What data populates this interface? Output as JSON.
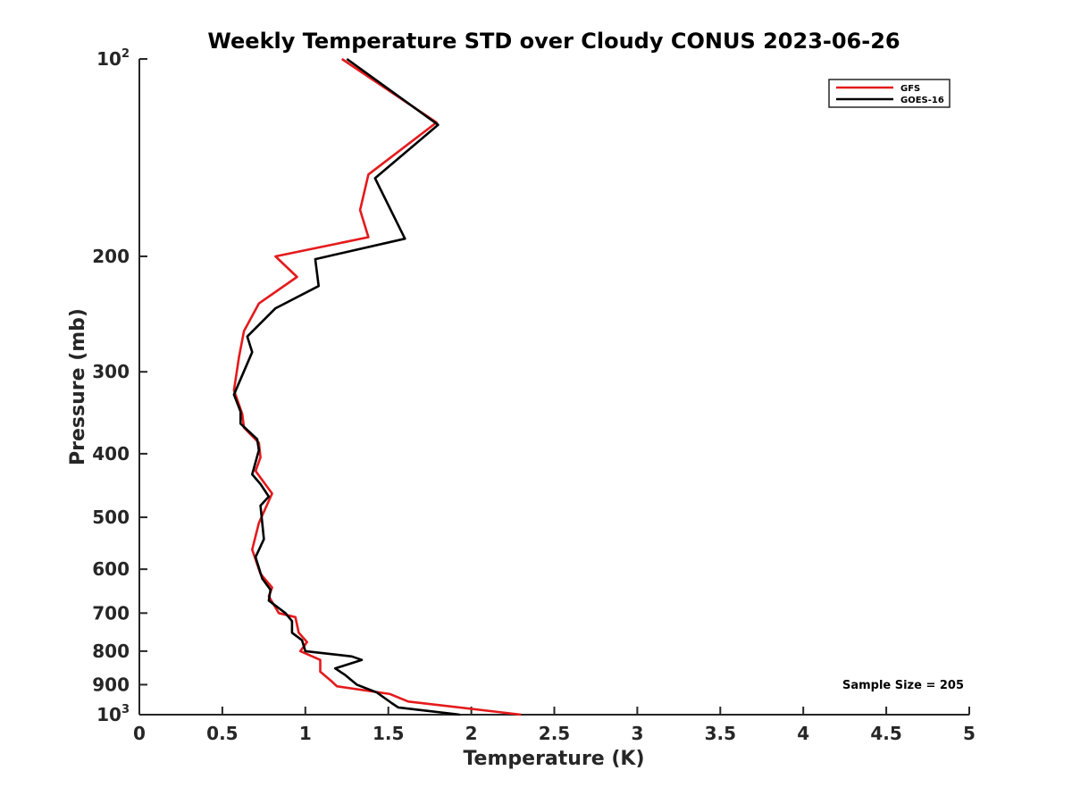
{
  "chart_data": {
    "type": "line",
    "title": "Weekly Temperature STD over Cloudy CONUS 2023-06-26",
    "xlabel": "Temperature (K)",
    "ylabel": "Pressure (mb)",
    "xlim": [
      0,
      5
    ],
    "ylim": [
      100,
      1000
    ],
    "yscale": "log",
    "y_reversed": true,
    "grid": false,
    "legend_position": "top-right",
    "x_ticks": [
      0,
      0.5,
      1,
      1.5,
      2,
      2.5,
      3,
      3.5,
      4,
      4.5,
      5
    ],
    "x_tick_labels": [
      "0",
      "0.5",
      "1",
      "1.5",
      "2",
      "2.5",
      "3",
      "3.5",
      "4",
      "4.5",
      "5"
    ],
    "y_ticks": [
      100,
      200,
      300,
      400,
      500,
      600,
      700,
      800,
      900,
      1000
    ],
    "y_tick_labels": [
      {
        "base": "10",
        "exp": "2"
      },
      {
        "base": "200",
        "exp": ""
      },
      {
        "base": "300",
        "exp": ""
      },
      {
        "base": "400",
        "exp": ""
      },
      {
        "base": "500",
        "exp": ""
      },
      {
        "base": "600",
        "exp": ""
      },
      {
        "base": "700",
        "exp": ""
      },
      {
        "base": "800",
        "exp": ""
      },
      {
        "base": "900",
        "exp": ""
      },
      {
        "base": "10",
        "exp": "3"
      }
    ],
    "series": [
      {
        "name": "GFS",
        "color": "#e41a1c",
        "points": [
          [
            1.22,
            100
          ],
          [
            1.79,
            125
          ],
          [
            1.38,
            150
          ],
          [
            1.33,
            170
          ],
          [
            1.38,
            187
          ],
          [
            0.82,
            200
          ],
          [
            0.95,
            215
          ],
          [
            0.72,
            236
          ],
          [
            0.63,
            260
          ],
          [
            0.6,
            285
          ],
          [
            0.57,
            320
          ],
          [
            0.62,
            348
          ],
          [
            0.63,
            365
          ],
          [
            0.72,
            385
          ],
          [
            0.73,
            405
          ],
          [
            0.7,
            425
          ],
          [
            0.8,
            460
          ],
          [
            0.72,
            510
          ],
          [
            0.68,
            560
          ],
          [
            0.73,
            610
          ],
          [
            0.8,
            640
          ],
          [
            0.78,
            660
          ],
          [
            0.84,
            700
          ],
          [
            0.94,
            710
          ],
          [
            0.96,
            750
          ],
          [
            1.01,
            775
          ],
          [
            0.97,
            800
          ],
          [
            1.09,
            825
          ],
          [
            1.09,
            860
          ],
          [
            1.16,
            890
          ],
          [
            1.19,
            905
          ],
          [
            1.51,
            930
          ],
          [
            1.62,
            955
          ],
          [
            2.3,
            1000
          ]
        ]
      },
      {
        "name": "GOES-16",
        "color": "#000000",
        "points": [
          [
            1.25,
            100
          ],
          [
            1.8,
            126
          ],
          [
            1.42,
            152
          ],
          [
            1.6,
            188
          ],
          [
            1.06,
            202
          ],
          [
            1.08,
            222
          ],
          [
            0.82,
            240
          ],
          [
            0.65,
            265
          ],
          [
            0.68,
            280
          ],
          [
            0.57,
            325
          ],
          [
            0.61,
            345
          ],
          [
            0.61,
            360
          ],
          [
            0.71,
            380
          ],
          [
            0.72,
            395
          ],
          [
            0.68,
            430
          ],
          [
            0.73,
            445
          ],
          [
            0.78,
            465
          ],
          [
            0.73,
            480
          ],
          [
            0.75,
            540
          ],
          [
            0.7,
            575
          ],
          [
            0.74,
            620
          ],
          [
            0.79,
            645
          ],
          [
            0.78,
            670
          ],
          [
            0.88,
            700
          ],
          [
            0.92,
            720
          ],
          [
            0.92,
            750
          ],
          [
            0.98,
            770
          ],
          [
            1.0,
            800
          ],
          [
            1.28,
            815
          ],
          [
            1.34,
            825
          ],
          [
            1.18,
            850
          ],
          [
            1.24,
            870
          ],
          [
            1.31,
            900
          ],
          [
            1.43,
            925
          ],
          [
            1.52,
            960
          ],
          [
            1.56,
            975
          ],
          [
            1.93,
            1000
          ]
        ]
      }
    ],
    "annotations": [
      {
        "text": "Sample Size = 205"
      }
    ]
  }
}
